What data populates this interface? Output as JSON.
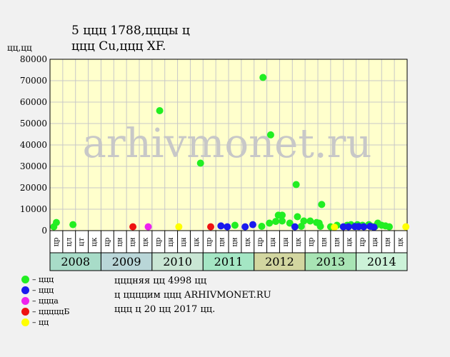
{
  "page": {
    "title_line1": "5 ццц 1788,цццы ц",
    "title_line2": "ццц Cu,ццц XF.",
    "ylabel": "цц,цц",
    "watermark": "arhivmonet.ru",
    "note_lines": [
      "цццняя цц 4998 цц",
      "ц ццццим ццц ARHIVMONET.RU",
      "ццц ц 20 цц 2017 цц."
    ]
  },
  "legend": [
    {
      "label": "– ццц",
      "color": "#22ee22"
    },
    {
      "label": "– ццц",
      "color": "#1a1aee"
    },
    {
      "label": "– ццца",
      "color": "#ee22ee"
    },
    {
      "label": "– цццццБ",
      "color": "#ee1111"
    },
    {
      "label": "– цц",
      "color": "#ffff00"
    }
  ],
  "chart_data": {
    "type": "scatter",
    "ylim": [
      0,
      80000
    ],
    "yticks": [
      0,
      10000,
      20000,
      30000,
      40000,
      50000,
      60000,
      70000,
      80000
    ],
    "grid": true,
    "quarter_labels": [
      "цр",
      "цл",
      "цт",
      "цк",
      "цр",
      "цн",
      "цн",
      "цк",
      "цр",
      "цн",
      "цн",
      "цк",
      "цр",
      "цн",
      "цн",
      "цк",
      "цр",
      "цн",
      "цн",
      "цк",
      "цр",
      "цн",
      "цн",
      "цк",
      "цр",
      "цн",
      "цн",
      "цк"
    ],
    "years": [
      {
        "label": "2008",
        "color": "#a8dcc8"
      },
      {
        "label": "2009",
        "color": "#b9d6d8"
      },
      {
        "label": "2010",
        "color": "#c9e6d4"
      },
      {
        "label": "2011",
        "color": "#a4e6c4"
      },
      {
        "label": "2012",
        "color": "#d2d6a0"
      },
      {
        "label": "2013",
        "color": "#a8e4b4"
      },
      {
        "label": "2014",
        "color": "#ccf2d8"
      }
    ],
    "series": [
      {
        "color": "#22ee22",
        "points": [
          [
            0.3,
            1800
          ],
          [
            0.5,
            3800
          ],
          [
            1.8,
            2800
          ],
          [
            8.6,
            56000
          ],
          [
            11.8,
            31500
          ],
          [
            14.5,
            2500
          ],
          [
            16.6,
            2000
          ],
          [
            16.7,
            71500
          ],
          [
            17.3,
            44700
          ],
          [
            17.2,
            3500
          ],
          [
            17.7,
            4300
          ],
          [
            17.9,
            7200
          ],
          [
            18.2,
            7200
          ],
          [
            18.2,
            4500
          ],
          [
            18.8,
            3500
          ],
          [
            19.3,
            21500
          ],
          [
            19.4,
            6500
          ],
          [
            19.7,
            2000
          ],
          [
            19.9,
            4500
          ],
          [
            20.4,
            4500
          ],
          [
            20.9,
            3800
          ],
          [
            21.1,
            3500
          ],
          [
            21.2,
            2000
          ],
          [
            21.3,
            12200
          ],
          [
            22.0,
            1800
          ],
          [
            22.5,
            2500
          ],
          [
            23.3,
            2500
          ],
          [
            23.6,
            2800
          ],
          [
            24.1,
            2800
          ],
          [
            24.5,
            2500
          ],
          [
            25.0,
            2800
          ],
          [
            25.2,
            2000
          ],
          [
            25.5,
            2000
          ],
          [
            25.7,
            3500
          ],
          [
            26.0,
            2500
          ],
          [
            26.3,
            2200
          ],
          [
            26.6,
            1800
          ]
        ]
      },
      {
        "color": "#1a1aee",
        "points": [
          [
            13.4,
            2200
          ],
          [
            13.9,
            1800
          ],
          [
            15.3,
            1800
          ],
          [
            15.9,
            2800
          ],
          [
            19.2,
            1800
          ],
          [
            23.0,
            1800
          ],
          [
            23.4,
            1800
          ],
          [
            23.9,
            1900
          ],
          [
            24.2,
            1900
          ],
          [
            24.6,
            1800
          ],
          [
            25.1,
            2000
          ],
          [
            25.4,
            1600
          ]
        ]
      },
      {
        "color": "#ee22ee",
        "points": [
          [
            7.7,
            1800
          ]
        ]
      },
      {
        "color": "#ee1111",
        "points": [
          [
            6.5,
            1800
          ],
          [
            12.6,
            1800
          ]
        ]
      },
      {
        "color": "#ffff00",
        "points": [
          [
            10.1,
            1800
          ],
          [
            22.3,
            1600
          ],
          [
            27.9,
            1800
          ]
        ]
      }
    ]
  }
}
